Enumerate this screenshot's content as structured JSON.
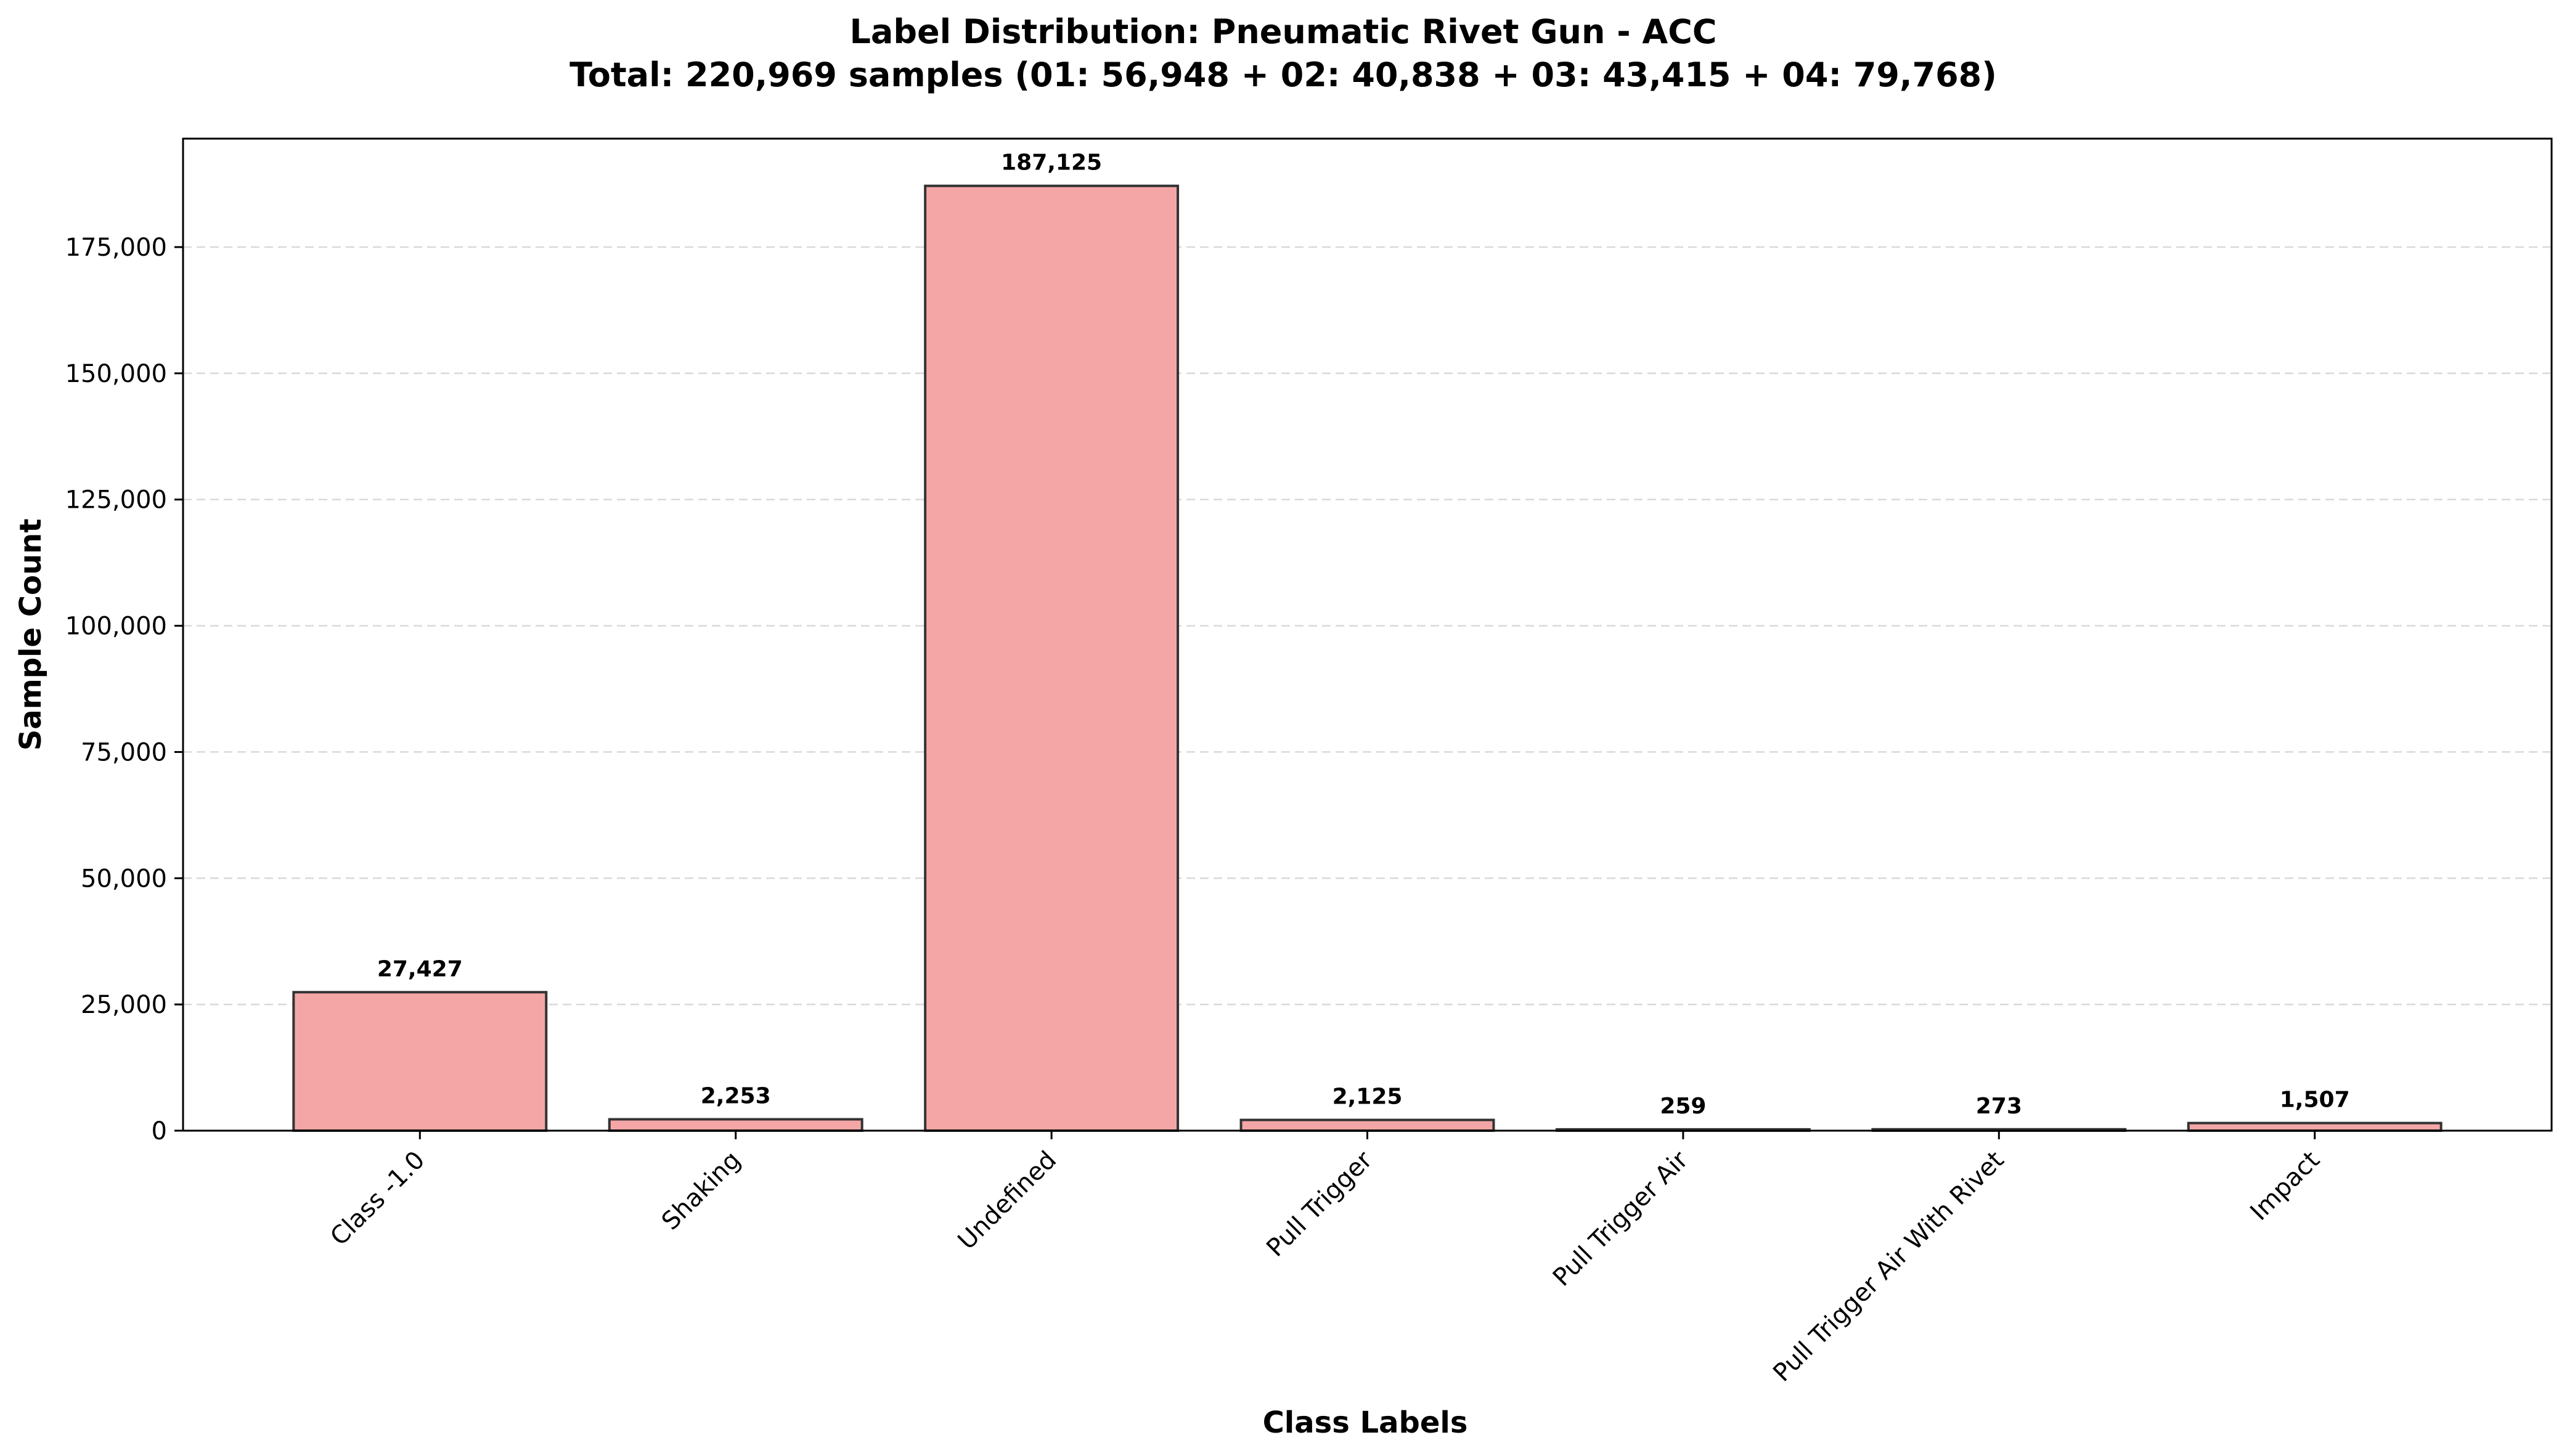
{
  "chart_data": {
    "type": "bar",
    "title": "Label Distribution: Pneumatic Rivet Gun - ACC",
    "subtitle": "Total: 220,969 samples (01: 56,948 + 02: 40,838 + 03: 43,415 + 04: 79,768)",
    "xlabel": "Class Labels",
    "ylabel": "Sample Count",
    "categories": [
      "Class -1.0",
      "Shaking",
      "Undefined",
      "Pull Trigger",
      "Pull Trigger Air",
      "Pull Trigger Air With Rivet",
      "Impact"
    ],
    "values": [
      27427,
      2253,
      187125,
      2125,
      259,
      273,
      1507
    ],
    "value_labels": [
      "27,427",
      "2,253",
      "187,125",
      "2,125",
      "259",
      "273",
      "1,507"
    ],
    "ylim": [
      0,
      196481
    ],
    "yticks": [
      0,
      25000,
      50000,
      75000,
      100000,
      125000,
      150000,
      175000
    ],
    "ytick_labels": [
      "0",
      "25,000",
      "50,000",
      "75,000",
      "100,000",
      "125,000",
      "150,000",
      "175,000"
    ],
    "grid": "y-dashed",
    "bar_color": "#f4a6a6",
    "bar_edge_color": "#333333",
    "grid_color": "#d9d9d9"
  }
}
